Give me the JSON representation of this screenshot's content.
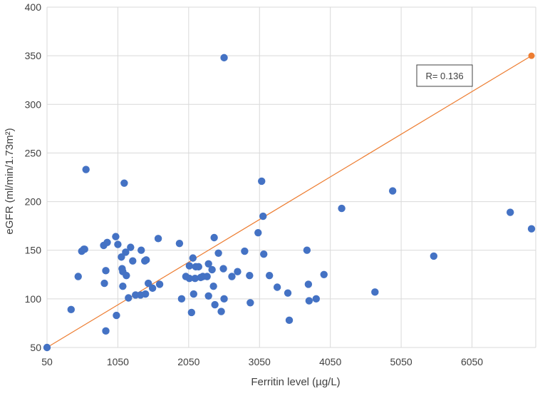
{
  "chart_data": {
    "type": "scatter",
    "title": "",
    "xlabel": "Ferritin level (µg/L)",
    "ylabel": "eGFR (ml/min/1.73m²)",
    "xlim": [
      50,
      6950
    ],
    "ylim": [
      50,
      400
    ],
    "x_ticks": [
      50,
      1050,
      2050,
      3050,
      4050,
      5050,
      6050
    ],
    "y_ticks": [
      50,
      100,
      150,
      200,
      250,
      300,
      350,
      400
    ],
    "grid": "vertical-and-horizontal",
    "annotation": "R= 0.136",
    "colors": {
      "points": "#4472C4",
      "line": "#ED7D31",
      "grid": "#D9D9D9",
      "axis_text": "#404040"
    },
    "series": [
      {
        "values": [
          [
            50,
            50
          ],
          [
            390,
            89
          ],
          [
            490,
            123
          ],
          [
            540,
            149
          ],
          [
            570,
            151
          ],
          [
            600,
            233
          ],
          [
            580,
            151
          ],
          [
            850,
            155
          ],
          [
            860,
            116
          ],
          [
            880,
            67
          ],
          [
            880,
            129
          ],
          [
            900,
            158
          ],
          [
            1020,
            164
          ],
          [
            1030,
            83
          ],
          [
            1050,
            156
          ],
          [
            1100,
            143
          ],
          [
            1110,
            131
          ],
          [
            1120,
            128
          ],
          [
            1120,
            113
          ],
          [
            1140,
            219
          ],
          [
            1160,
            148
          ],
          [
            1170,
            124
          ],
          [
            1200,
            101
          ],
          [
            1230,
            153
          ],
          [
            1260,
            139
          ],
          [
            1300,
            104
          ],
          [
            1370,
            104
          ],
          [
            1380,
            150
          ],
          [
            1440,
            105
          ],
          [
            1430,
            139
          ],
          [
            1450,
            140
          ],
          [
            1480,
            116
          ],
          [
            1540,
            111
          ],
          [
            1620,
            162
          ],
          [
            1640,
            115
          ],
          [
            1920,
            157
          ],
          [
            1950,
            100
          ],
          [
            2010,
            123
          ],
          [
            2060,
            121
          ],
          [
            2060,
            134
          ],
          [
            2090,
            86
          ],
          [
            2110,
            142
          ],
          [
            2120,
            105
          ],
          [
            2140,
            121
          ],
          [
            2150,
            133
          ],
          [
            2190,
            133
          ],
          [
            2220,
            122
          ],
          [
            2250,
            123
          ],
          [
            2310,
            123
          ],
          [
            2330,
            136
          ],
          [
            2330,
            103
          ],
          [
            2380,
            130
          ],
          [
            2400,
            113
          ],
          [
            2410,
            163
          ],
          [
            2420,
            94
          ],
          [
            2470,
            147
          ],
          [
            2510,
            87
          ],
          [
            2540,
            131
          ],
          [
            2550,
            100
          ],
          [
            2550,
            348
          ],
          [
            2660,
            123
          ],
          [
            2740,
            128
          ],
          [
            2840,
            149
          ],
          [
            2910,
            124
          ],
          [
            2920,
            96
          ],
          [
            3030,
            168
          ],
          [
            3080,
            221
          ],
          [
            3100,
            185
          ],
          [
            3110,
            146
          ],
          [
            3190,
            124
          ],
          [
            3300,
            112
          ],
          [
            3450,
            106
          ],
          [
            3470,
            78
          ],
          [
            3720,
            150
          ],
          [
            3740,
            115
          ],
          [
            3750,
            98
          ],
          [
            3850,
            100
          ],
          [
            3960,
            125
          ],
          [
            4210,
            193
          ],
          [
            4680,
            107
          ],
          [
            4930,
            211
          ],
          [
            5510,
            144
          ],
          [
            6590,
            189
          ],
          [
            6890,
            172
          ]
        ]
      }
    ],
    "trendline": {
      "x": [
        50,
        6890
      ],
      "y": [
        50,
        350
      ]
    }
  }
}
